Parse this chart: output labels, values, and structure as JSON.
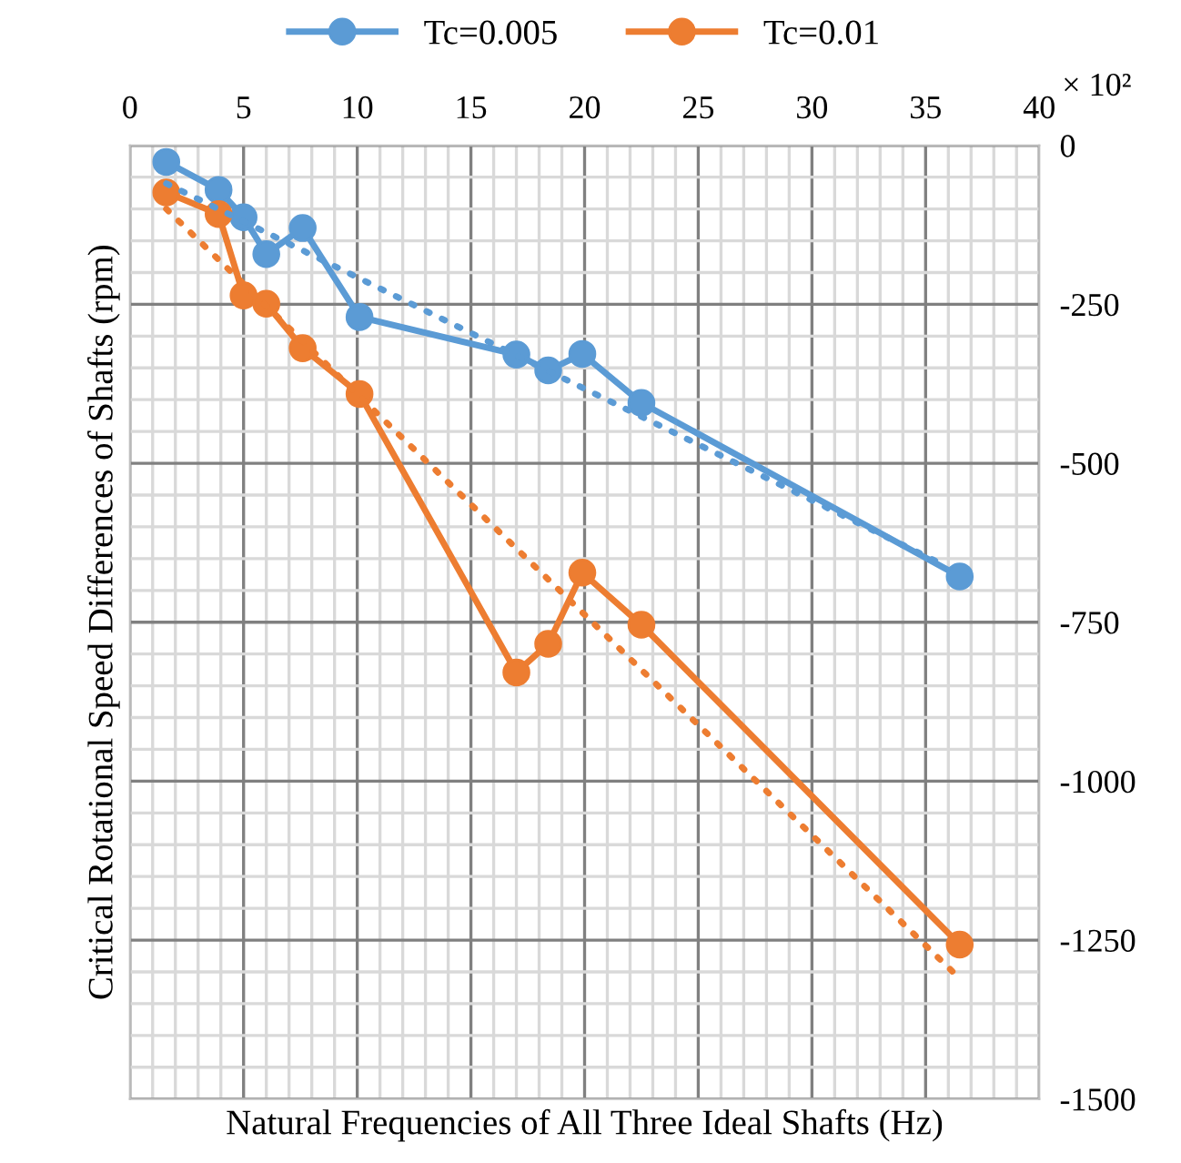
{
  "chart_data": {
    "type": "line",
    "xlabel": "Natural Frequencies of All Three Ideal Shafts (Hz)",
    "ylabel": "Critical Rotational Speed Differences of Shafts (rpm)",
    "annotations": [
      "× 10²"
    ],
    "x": [
      1.6,
      3.9,
      5.0,
      6.0,
      7.6,
      10.1,
      17.0,
      18.4,
      19.9,
      22.5,
      36.5
    ],
    "series": [
      {
        "name": "Tc=0.005",
        "color": "#5b9bd5",
        "values": [
          -26,
          -70,
          -113,
          -171,
          -130,
          -270,
          -329,
          -354,
          -328,
          -405,
          -678
        ]
      },
      {
        "name": "Tc=0.01",
        "color": "#ed7d31",
        "values": [
          -74,
          -108,
          -236,
          -249,
          -319,
          -391,
          -829,
          -784,
          -672,
          -754,
          -1257
        ]
      },
      {
        "color": "#5b9bd5",
        "x": [
          1.6,
          35.8
        ],
        "values": [
          -60,
          -660
        ],
        "marker": "none",
        "line_style": "dotted"
      },
      {
        "color": "#ed7d31",
        "x": [
          1.6,
          36.2
        ],
        "values": [
          -100,
          -1300
        ],
        "marker": "none",
        "line_style": "dotted"
      }
    ],
    "xlim": [
      0,
      40
    ],
    "xticks": [
      0,
      5,
      10,
      15,
      20,
      25,
      30,
      35,
      40
    ],
    "ylim": [
      -1500,
      0
    ],
    "yticks": [
      -1500,
      -1250,
      -1000,
      -750,
      -500,
      -250,
      0
    ],
    "grid": true,
    "legend": "top",
    "marker": "circle",
    "line_style": "solid"
  }
}
